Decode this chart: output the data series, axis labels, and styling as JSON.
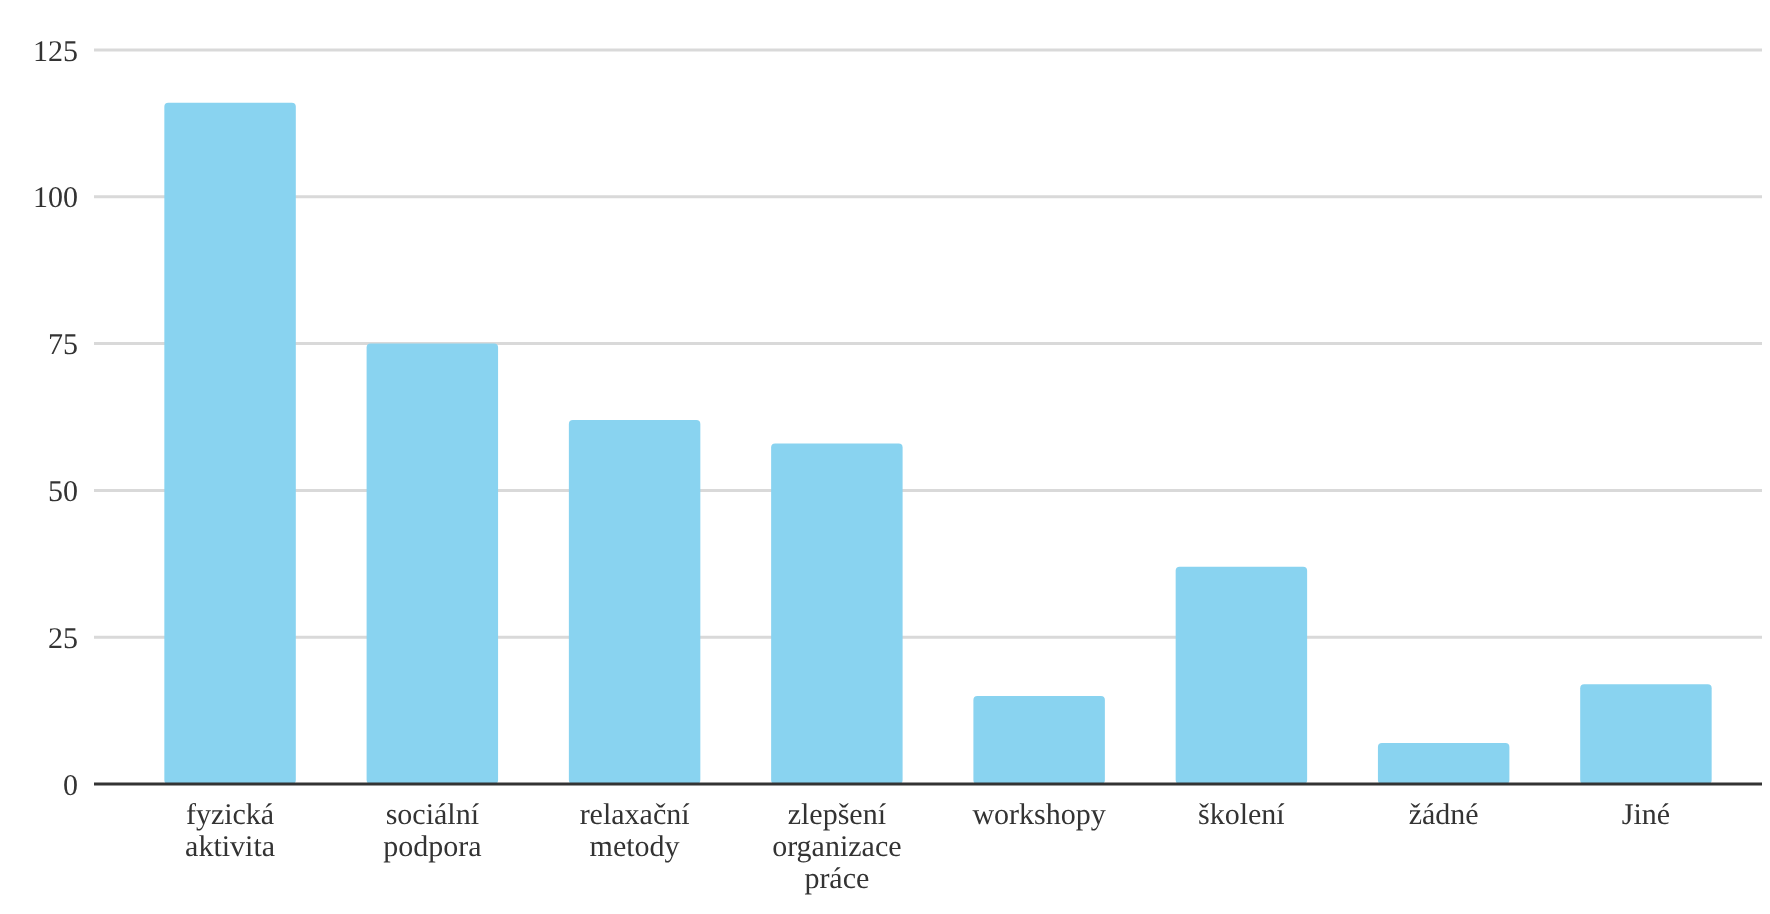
{
  "chart_data": {
    "type": "bar",
    "categories": [
      "fyzická aktivita",
      "sociální podpora",
      "relaxační metody",
      "zlepšení organizace práce",
      "workshopy",
      "školení",
      "žádné",
      "Jiné"
    ],
    "values": [
      116,
      75,
      62,
      58,
      15,
      37,
      7,
      17
    ],
    "color": "#89d3f0",
    "ylim": [
      0,
      125
    ],
    "yticks": [
      0,
      25,
      50,
      75,
      100,
      125
    ],
    "grid": "y"
  }
}
